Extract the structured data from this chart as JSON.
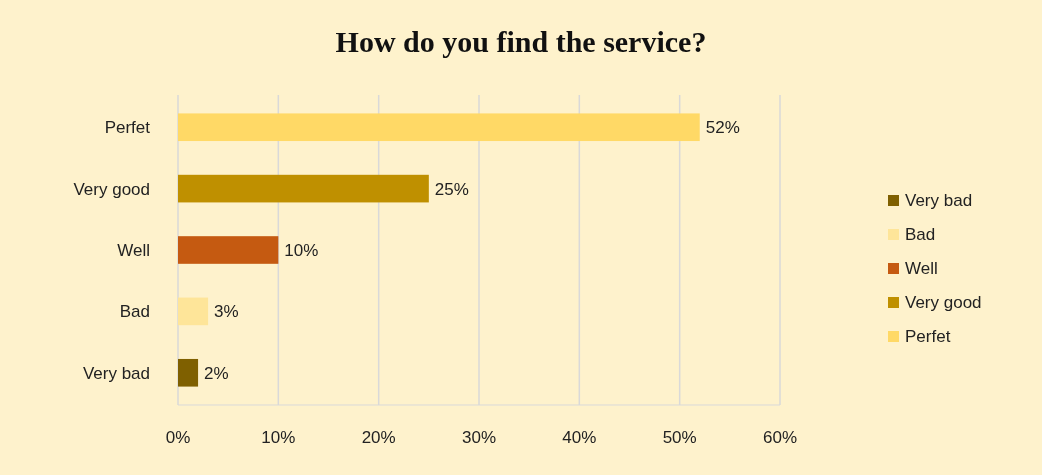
{
  "chart_data": {
    "type": "bar",
    "orientation": "horizontal",
    "title": "How do you find the service?",
    "categories": [
      "Perfet",
      "Very good",
      "Well",
      "Bad",
      "Very bad"
    ],
    "series": [
      {
        "name": "Very bad",
        "color": "#7f6000",
        "values": [
          null,
          null,
          null,
          null,
          2
        ],
        "value_labels": [
          null,
          null,
          null,
          null,
          "2%"
        ]
      },
      {
        "name": "Bad",
        "color": "#fee599",
        "values": [
          null,
          null,
          null,
          3,
          null
        ],
        "value_labels": [
          null,
          null,
          null,
          "3%",
          null
        ]
      },
      {
        "name": "Well",
        "color": "#c55a11",
        "values": [
          null,
          null,
          10,
          null,
          null
        ],
        "value_labels": [
          null,
          null,
          "10%",
          null,
          null
        ]
      },
      {
        "name": "Very good",
        "color": "#bf9000",
        "values": [
          null,
          25,
          null,
          null,
          null
        ],
        "value_labels": [
          null,
          "25%",
          null,
          null,
          null
        ]
      },
      {
        "name": "Perfet",
        "color": "#ffd966",
        "values": [
          52,
          null,
          null,
          null,
          null
        ],
        "value_labels": [
          "52%",
          null,
          null,
          null,
          null
        ]
      }
    ],
    "xlim": [
      0,
      60
    ],
    "xticks": [
      {
        "value": 0,
        "label": "0%"
      },
      {
        "value": 10,
        "label": "10%"
      },
      {
        "value": 20,
        "label": "20%"
      },
      {
        "value": 30,
        "label": "30%"
      },
      {
        "value": 40,
        "label": "40%"
      },
      {
        "value": 50,
        "label": "50%"
      },
      {
        "value": 60,
        "label": "60%"
      }
    ],
    "grid": "x",
    "legend": "right"
  }
}
